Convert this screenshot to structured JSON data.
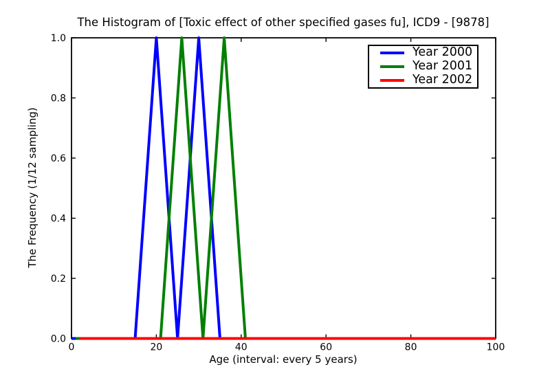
{
  "chart_data": {
    "type": "line",
    "title": "The Histogram of [Toxic effect of other specified gases fu], ICD9 - [9878]",
    "xlabel": "Age (interval: every 5 years)",
    "ylabel": "The Frequency (1/12 sampling)",
    "xlim": [
      0,
      100
    ],
    "ylim": [
      0.0,
      1.0
    ],
    "x_ticks": [
      0,
      20,
      40,
      60,
      80,
      100
    ],
    "x_tick_labels": [
      "0",
      "20",
      "40",
      "60",
      "80",
      "100"
    ],
    "y_ticks": [
      0.0,
      0.2,
      0.4,
      0.6,
      0.8,
      1.0
    ],
    "y_tick_labels": [
      "0.0",
      "0.2",
      "0.4",
      "0.6",
      "0.8",
      "1.0"
    ],
    "grid": false,
    "legend_position": "upper right",
    "axis_color": "#000000",
    "background_color": "#ffffff",
    "series": [
      {
        "name": "Year 2000",
        "color": "#0000ff",
        "x": [
          0,
          15,
          20,
          25,
          30,
          35,
          100
        ],
        "y": [
          0,
          0,
          1,
          0,
          1,
          0,
          0
        ]
      },
      {
        "name": "Year 2001",
        "color": "#008000",
        "x": [
          1,
          21,
          26,
          31,
          36,
          41,
          100
        ],
        "y": [
          0,
          0,
          1,
          0,
          1,
          0,
          0
        ]
      },
      {
        "name": "Year 2002",
        "color": "#ff0000",
        "x": [
          2,
          100
        ],
        "y": [
          0,
          0
        ]
      }
    ]
  }
}
